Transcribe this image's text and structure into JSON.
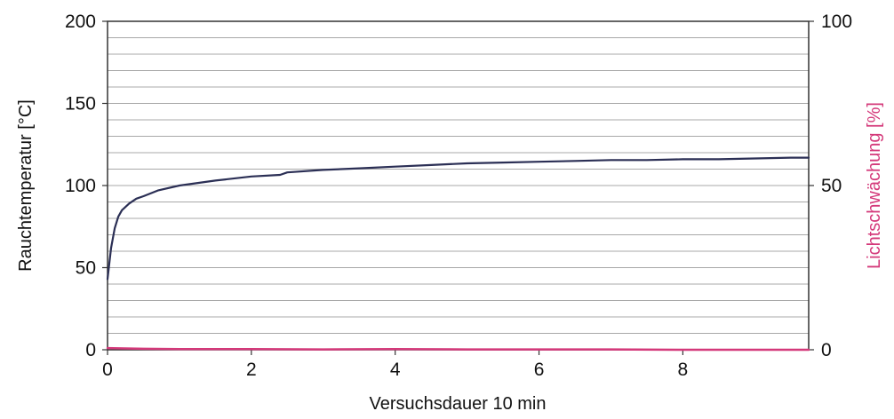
{
  "chart_data": {
    "type": "line",
    "xlabel": "Versuchsdauer 10 min",
    "ylabel_left": "Rauchtemperatur [°C]",
    "ylabel_right": "Lichtschwächung [%]",
    "xlim": [
      0,
      9.75
    ],
    "ylim_left": [
      0,
      200
    ],
    "ylim_right": [
      0,
      100
    ],
    "x_ticks": [
      0,
      2,
      4,
      6,
      8
    ],
    "y_ticks_left": [
      0,
      50,
      100,
      150,
      200
    ],
    "y_ticks_right": [
      0,
      50,
      100
    ],
    "grid": true,
    "grid_minor_step_left": 10,
    "series": [
      {
        "axis": "left",
        "color": "#2b2f55",
        "x": [
          0,
          0.05,
          0.1,
          0.15,
          0.2,
          0.3,
          0.4,
          0.5,
          0.7,
          1.0,
          1.5,
          2.0,
          2.4,
          2.5,
          3.0,
          3.5,
          4.0,
          4.5,
          5.0,
          5.5,
          6.0,
          6.5,
          7.0,
          7.5,
          8.0,
          8.5,
          9.0,
          9.5,
          9.75
        ],
        "y": [
          43,
          62,
          74,
          81,
          85,
          89,
          92,
          93.5,
          97,
          100,
          103,
          105.5,
          106.5,
          108,
          109.5,
          110.5,
          111.5,
          112.5,
          113.5,
          114,
          114.5,
          115,
          115.5,
          115.5,
          116,
          116,
          116.5,
          117,
          117
        ]
      },
      {
        "axis": "right",
        "color": "#d4397a",
        "x": [
          0,
          0.5,
          1,
          2,
          3,
          4,
          5,
          6,
          7,
          8,
          9,
          9.75
        ],
        "y": [
          0.5,
          0.3,
          0.2,
          0.2,
          0.1,
          0.2,
          0.1,
          0.1,
          0.1,
          0,
          0,
          0
        ]
      }
    ]
  }
}
